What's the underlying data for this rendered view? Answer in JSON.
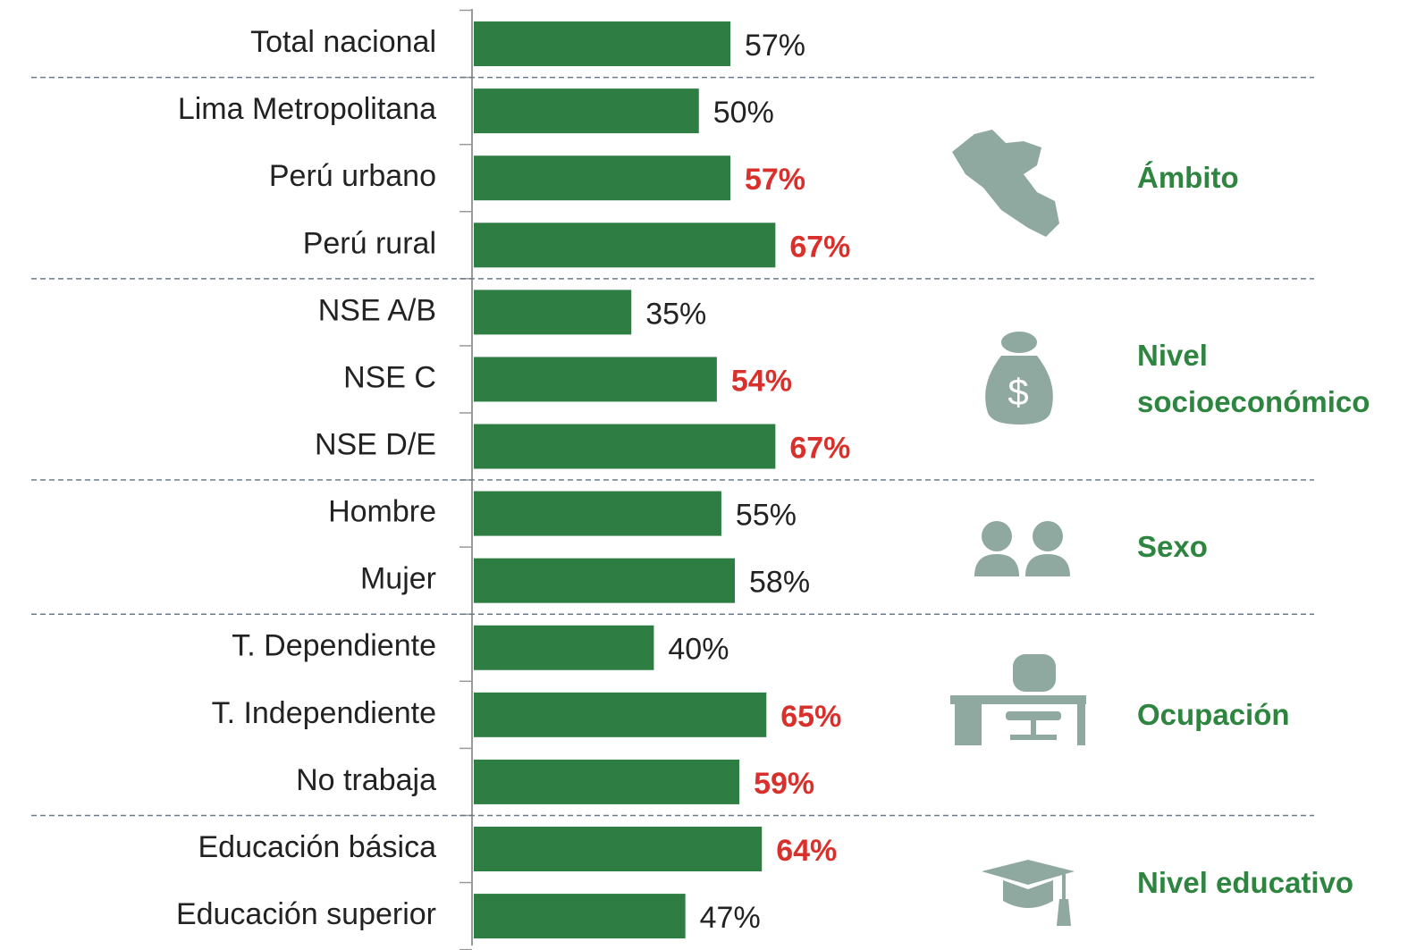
{
  "chart_data": {
    "type": "bar",
    "orientation": "horizontal",
    "categories": [
      "Total nacional",
      "Lima Metropolitana",
      "Perú urbano",
      "Perú rural",
      "NSE A/B",
      "NSE C",
      "NSE D/E",
      "Hombre",
      "Mujer",
      "T. Dependiente",
      "T. Independiente",
      "No trabaja",
      "Educación básica",
      "Educación superior"
    ],
    "values": [
      57,
      50,
      57,
      67,
      35,
      54,
      67,
      55,
      58,
      40,
      65,
      59,
      64,
      47
    ],
    "value_labels": [
      "57%",
      "50%",
      "57%",
      "67%",
      "35%",
      "54%",
      "67%",
      "55%",
      "58%",
      "40%",
      "65%",
      "59%",
      "64%",
      "47%"
    ],
    "highlight": [
      false,
      false,
      true,
      true,
      false,
      true,
      true,
      false,
      false,
      false,
      true,
      true,
      true,
      false
    ],
    "groups": [
      null,
      "Ámbito",
      "Ámbito",
      "Ámbito",
      "Nivel socioeconómico",
      "Nivel socioeconómico",
      "Nivel socioeconómico",
      "Sexo",
      "Sexo",
      "Ocupación",
      "Ocupación",
      "Ocupación",
      "Nivel educativo",
      "Nivel educativo"
    ],
    "color": "#2e7d43",
    "highlight_color": "#d9302c",
    "label_color": "#222222",
    "xlim": [
      0,
      100
    ]
  }
}
